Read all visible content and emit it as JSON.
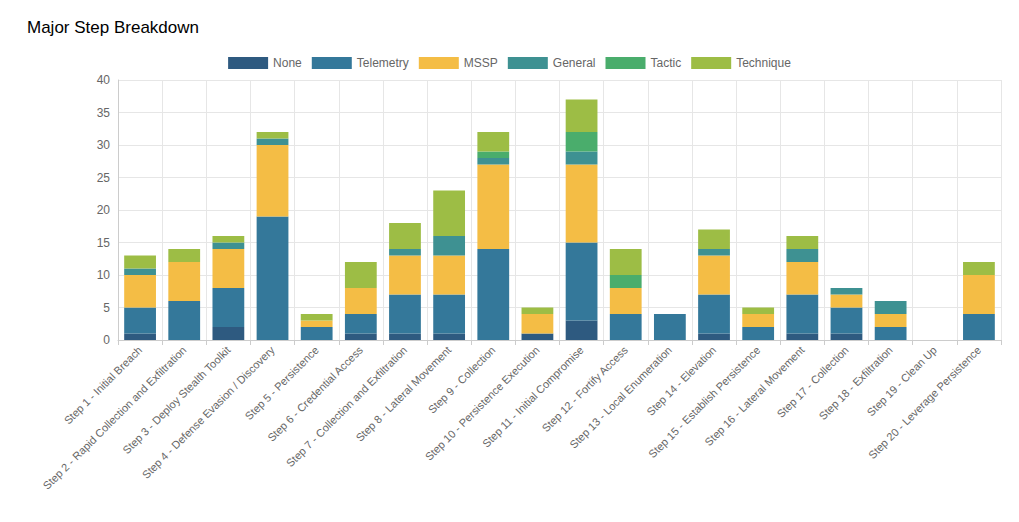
{
  "chart_data": {
    "type": "bar",
    "title": "Major Step Breakdown",
    "categories": [
      "Step 1 - Initial Breach",
      "Step 2 - Rapid Collection and Exfiltration",
      "Step 3 - Deploy Stealth Toolkit",
      "Step 4 - Defense Evasion / Discovery",
      "Step 5 - Persistence",
      "Step 6 - Credential Access",
      "Step 7 - Collection and Exfiltration",
      "Step 8 - Lateral Movement",
      "Step 9 - Collection",
      "Step 10 - Persistence Execution",
      "Step 11 - Initial Compromise",
      "Step 12 - Fortify Access",
      "Step 13 - Local Enumeration",
      "Step 14 - Elevation",
      "Step 15 - Establish Persistence",
      "Step 16 - Lateral Movement",
      "Step 17 - Collection",
      "Step 18 - Exfiltration",
      "Step 19 - Clean Up",
      "Step 20 - Leverage Persistence"
    ],
    "series": [
      {
        "name": "None",
        "color": "#2e5a80",
        "values": [
          1,
          0,
          2,
          0,
          0,
          1,
          1,
          1,
          0,
          1,
          3,
          0,
          0,
          1,
          0,
          1,
          1,
          0,
          0,
          0
        ]
      },
      {
        "name": "Telemetry",
        "color": "#34789a",
        "values": [
          4,
          6,
          6,
          19,
          2,
          3,
          6,
          6,
          14,
          0,
          12,
          4,
          4,
          6,
          2,
          6,
          4,
          2,
          0,
          4
        ]
      },
      {
        "name": "MSSP",
        "color": "#f4bd45",
        "values": [
          5,
          6,
          6,
          11,
          1,
          4,
          6,
          6,
          13,
          3,
          12,
          4,
          0,
          6,
          2,
          5,
          2,
          2,
          0,
          6
        ]
      },
      {
        "name": "General",
        "color": "#3e9192",
        "values": [
          1,
          0,
          1,
          1,
          0,
          0,
          1,
          3,
          1,
          0,
          2,
          0,
          0,
          1,
          0,
          2,
          1,
          2,
          0,
          0
        ]
      },
      {
        "name": "Tactic",
        "color": "#4aad6c",
        "values": [
          0,
          0,
          0,
          0,
          0,
          0,
          0,
          0,
          1,
          0,
          3,
          2,
          0,
          0,
          0,
          0,
          0,
          0,
          0,
          0
        ]
      },
      {
        "name": "Technique",
        "color": "#9dbd45",
        "values": [
          2,
          2,
          1,
          1,
          1,
          4,
          4,
          7,
          3,
          1,
          5,
          4,
          0,
          3,
          1,
          2,
          0,
          0,
          0,
          2
        ]
      }
    ],
    "ylim": [
      0,
      40
    ],
    "yticks": [
      0,
      5,
      10,
      15,
      20,
      25,
      30,
      35,
      40
    ],
    "stacked": true,
    "grid": true,
    "legend": "top"
  }
}
